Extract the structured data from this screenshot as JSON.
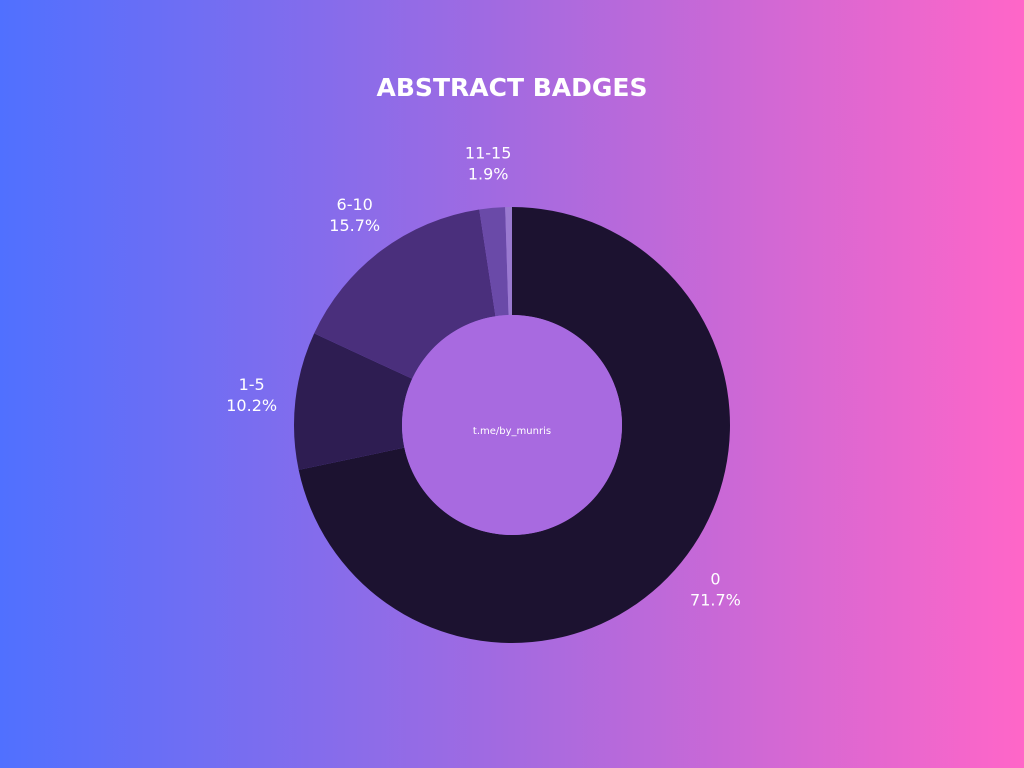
{
  "chart_data": {
    "type": "donut",
    "title": "ABSTRACT BADGES",
    "annotation": "t.me/by_munris",
    "categories": [
      "0",
      "1-5",
      "6-10",
      "11-15",
      null
    ],
    "values": [
      71.7,
      10.2,
      15.7,
      1.9,
      0.5
    ],
    "value_labels": [
      "71.7%",
      "10.2%",
      "15.7%",
      "1.9%",
      null
    ],
    "colors": [
      "#1c1230",
      "#2e1d52",
      "#4a2f7c",
      "#6a4aa8",
      "#9a7ad0"
    ]
  }
}
